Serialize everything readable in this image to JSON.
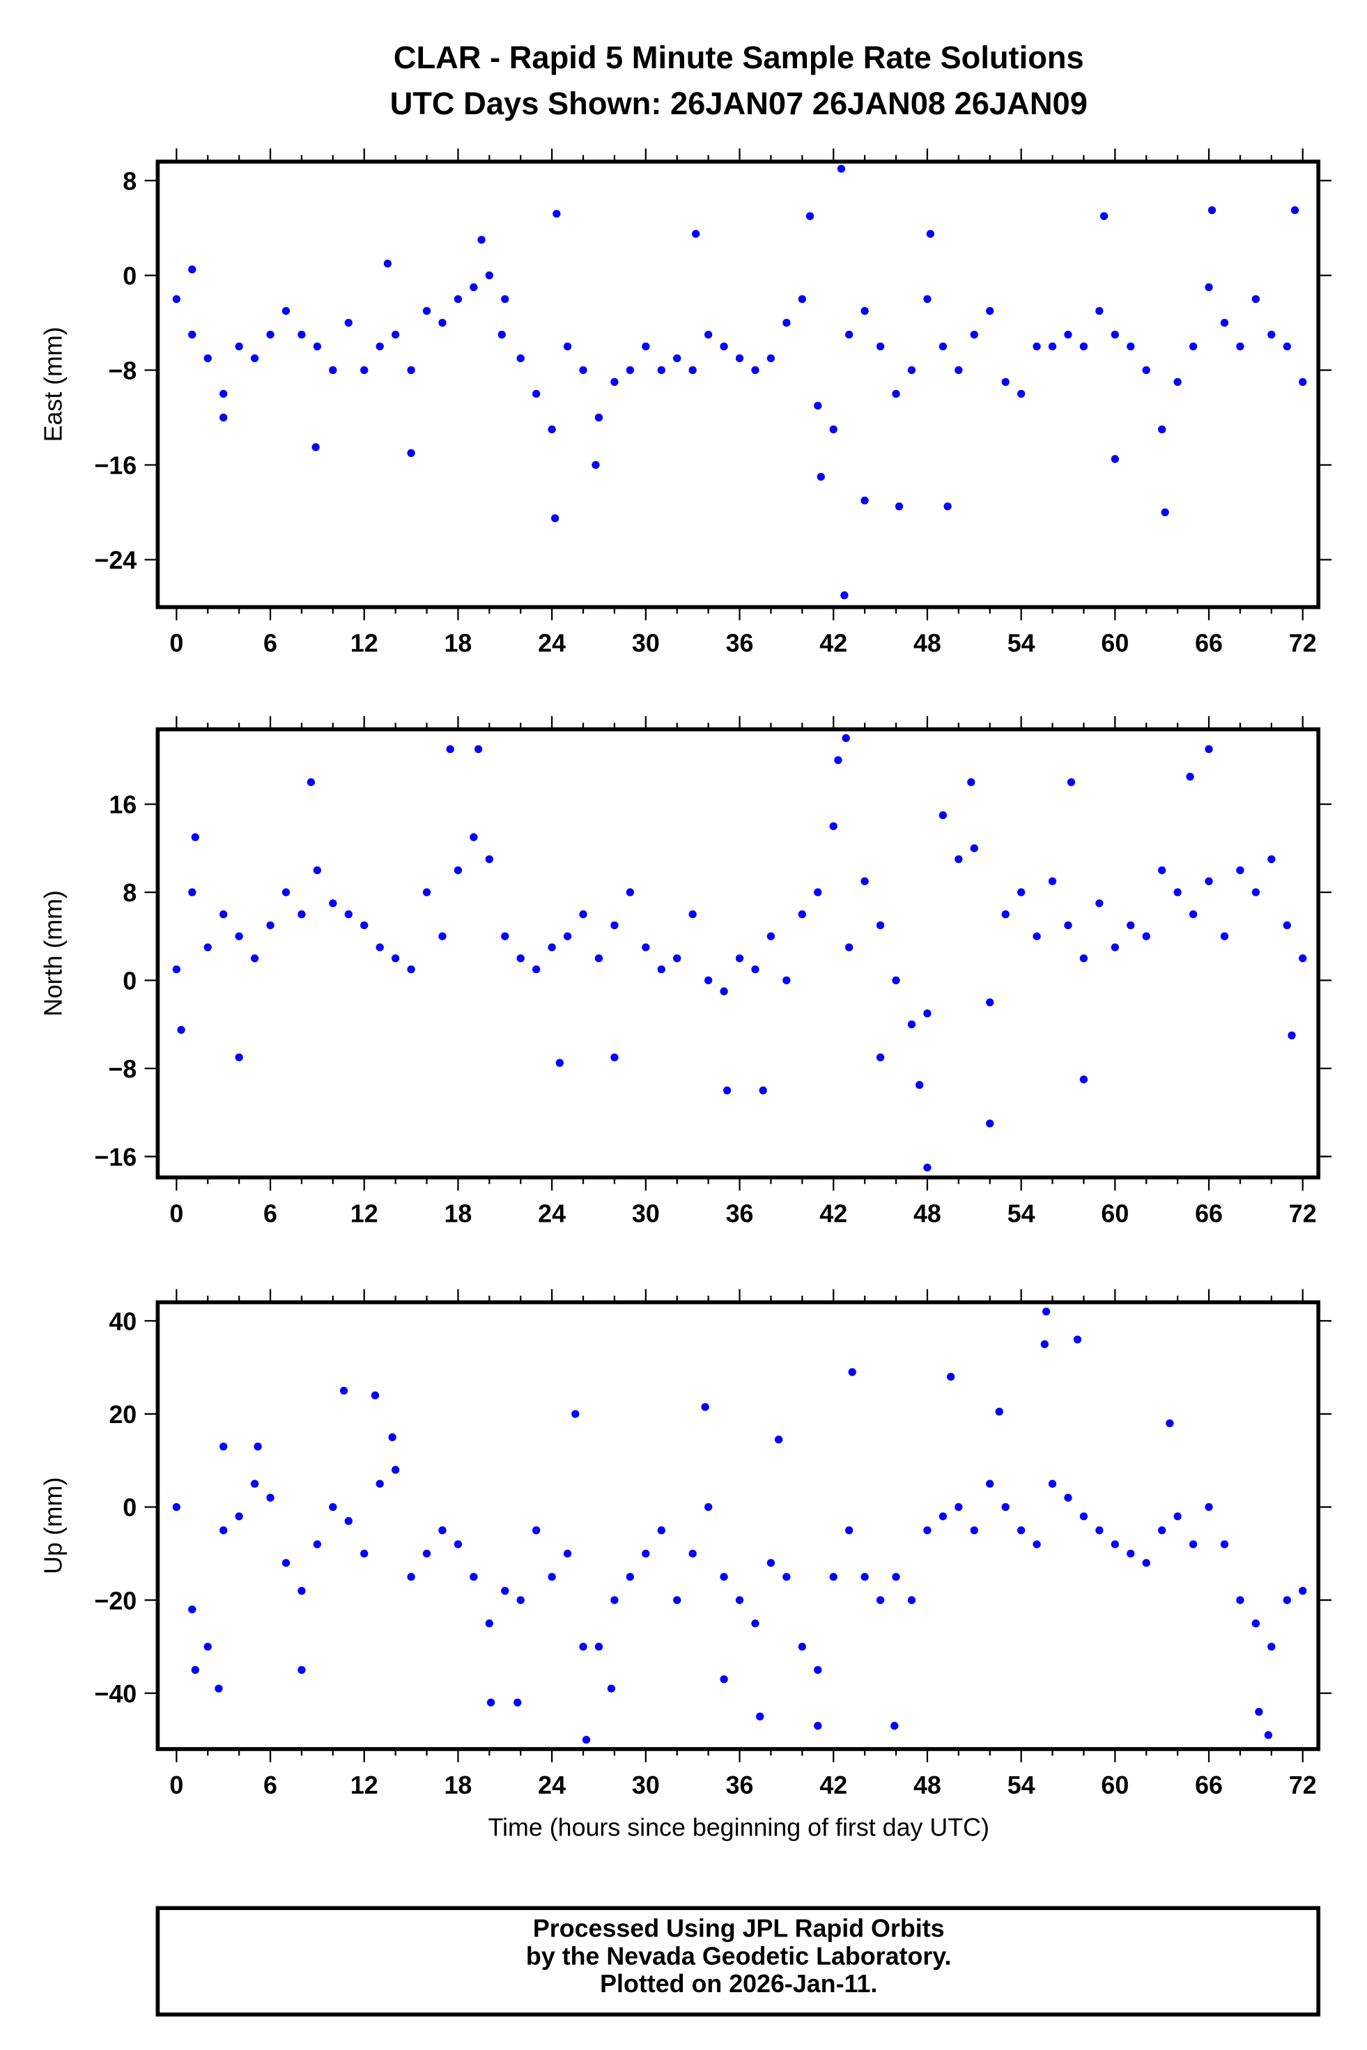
{
  "chart_data": {
    "title": "CLAR - Rapid 5 Minute Sample Rate Solutions",
    "subtitle": "UTC Days Shown:  26JAN07 26JAN08 26JAN09",
    "xlabel": "Time (hours since beginning of first day UTC)",
    "xlim": [
      -1.2,
      73
    ],
    "xticks": [
      0,
      6,
      12,
      18,
      24,
      30,
      36,
      42,
      48,
      54,
      60,
      66,
      72
    ],
    "marker_color": "#0000ff",
    "panels": [
      {
        "type": "scatter",
        "ylabel": "East (mm)",
        "ylim": [
          -28,
          9.6
        ],
        "yticks": [
          8,
          0,
          -8,
          -16,
          -24
        ],
        "hourly": [
          -2,
          -5,
          -7,
          -10,
          -6,
          -7,
          -5,
          -3,
          -5,
          -6,
          -8,
          -4,
          -8,
          -6,
          -5,
          -8,
          -3,
          -4,
          -2,
          -1,
          0,
          -2,
          -7,
          -10,
          -13,
          -6,
          -8,
          -12,
          -9,
          -8,
          -6,
          -8,
          -7,
          -8,
          -5,
          -6,
          -7,
          -8,
          -7,
          -4,
          -2,
          -11,
          -13,
          -5,
          -3,
          -6,
          -10,
          -8,
          -2,
          -6,
          -8,
          -5,
          -3,
          -9,
          -10,
          -6,
          -6,
          -5,
          -6,
          -3,
          -5,
          -6,
          -8,
          -13,
          -9,
          -6,
          -1,
          -4,
          -6,
          -2,
          -5,
          -6,
          -9
        ],
        "extra": [
          [
            42.5,
            9
          ],
          [
            42.7,
            -27
          ],
          [
            24.2,
            -20.5
          ],
          [
            49.3,
            -19.5
          ],
          [
            66.2,
            5.5
          ],
          [
            71.5,
            5.5
          ],
          [
            63.2,
            -20
          ],
          [
            59.3,
            5
          ],
          [
            24.3,
            5.2
          ],
          [
            48.2,
            3.5
          ],
          [
            33.2,
            3.5
          ],
          [
            41.2,
            -17
          ],
          [
            44,
            -19
          ],
          [
            46.2,
            -19.5
          ],
          [
            15,
            -15
          ],
          [
            8.9,
            -14.5
          ],
          [
            26.8,
            -16
          ],
          [
            60,
            -15.5
          ],
          [
            1,
            0.5
          ],
          [
            19.5,
            3
          ],
          [
            40.5,
            5
          ],
          [
            20.8,
            -5
          ],
          [
            13.5,
            1
          ],
          [
            3,
            -12
          ]
        ]
      },
      {
        "type": "scatter",
        "ylabel": "North (mm)",
        "ylim": [
          -17.9,
          22.8
        ],
        "yticks": [
          16,
          8,
          0,
          -8,
          -16
        ],
        "hourly": [
          1,
          8,
          3,
          6,
          4,
          2,
          5,
          8,
          6,
          10,
          7,
          6,
          5,
          3,
          2,
          1,
          8,
          4,
          10,
          13,
          11,
          4,
          2,
          1,
          3,
          4,
          6,
          2,
          5,
          8,
          3,
          1,
          2,
          6,
          0,
          -1,
          2,
          1,
          4,
          0,
          6,
          8,
          14,
          3,
          9,
          5,
          0,
          -4,
          -3,
          15,
          11,
          12,
          -2,
          6,
          8,
          4,
          9,
          5,
          2,
          7,
          3,
          5,
          4,
          10,
          8,
          6,
          9,
          4,
          10,
          8,
          11,
          5,
          2
        ],
        "extra": [
          [
            19.3,
            21
          ],
          [
            17.5,
            21
          ],
          [
            42.8,
            22
          ],
          [
            66,
            21
          ],
          [
            48,
            -17
          ],
          [
            52,
            -13
          ],
          [
            35.2,
            -10
          ],
          [
            37.5,
            -10
          ],
          [
            4,
            -7
          ],
          [
            58,
            -9
          ],
          [
            8.6,
            18
          ],
          [
            42.3,
            20
          ],
          [
            50.8,
            18
          ],
          [
            57.2,
            18
          ],
          [
            64.8,
            18.5
          ],
          [
            47.5,
            -9.5
          ],
          [
            24.5,
            -7.5
          ],
          [
            28,
            -7
          ],
          [
            71.3,
            -5
          ],
          [
            1.2,
            13
          ],
          [
            0.3,
            -4.5
          ],
          [
            45,
            -7
          ]
        ]
      },
      {
        "type": "scatter",
        "ylabel": "Up (mm)",
        "ylim": [
          -52,
          44
        ],
        "yticks": [
          40,
          20,
          0,
          -20,
          -40
        ],
        "hourly": [
          0,
          -22,
          -30,
          -5,
          -2,
          5,
          2,
          -12,
          -18,
          -8,
          0,
          -3,
          -10,
          5,
          8,
          -15,
          -10,
          -5,
          -8,
          -15,
          -25,
          -18,
          -20,
          -5,
          -15,
          -10,
          -30,
          -30,
          -20,
          -15,
          -10,
          -5,
          -20,
          -10,
          0,
          -15,
          -20,
          -25,
          -12,
          -15,
          -30,
          -35,
          -15,
          -5,
          -15,
          -20,
          -15,
          -20,
          -5,
          -2,
          0,
          -5,
          5,
          0,
          -5,
          -8,
          5,
          2,
          -2,
          -5,
          -8,
          -10,
          -12,
          -5,
          -2,
          -8,
          0,
          -8,
          -20,
          -25,
          -30,
          -20,
          -18
        ],
        "extra": [
          [
            55.6,
            42
          ],
          [
            57.6,
            36
          ],
          [
            43.2,
            29
          ],
          [
            10.7,
            25
          ],
          [
            12.7,
            24
          ],
          [
            26.2,
            -50
          ],
          [
            69.8,
            -49
          ],
          [
            41,
            -47
          ],
          [
            45.9,
            -47
          ],
          [
            49.5,
            28
          ],
          [
            55.5,
            35
          ],
          [
            25.5,
            20
          ],
          [
            33.8,
            21.5
          ],
          [
            52.6,
            20.5
          ],
          [
            63.5,
            18
          ],
          [
            1.2,
            -35
          ],
          [
            2.7,
            -39
          ],
          [
            8,
            -35
          ],
          [
            20.1,
            -42
          ],
          [
            21.8,
            -42
          ],
          [
            27.8,
            -39
          ],
          [
            35,
            -37
          ],
          [
            37.3,
            -45
          ],
          [
            69.2,
            -44
          ],
          [
            3,
            13
          ],
          [
            5.2,
            13
          ],
          [
            13.8,
            15
          ],
          [
            38.5,
            14.5
          ]
        ]
      }
    ],
    "footer": [
      "Processed Using JPL Rapid Orbits",
      "by the Nevada Geodetic Laboratory.",
      "Plotted on 2026-Jan-11."
    ]
  }
}
